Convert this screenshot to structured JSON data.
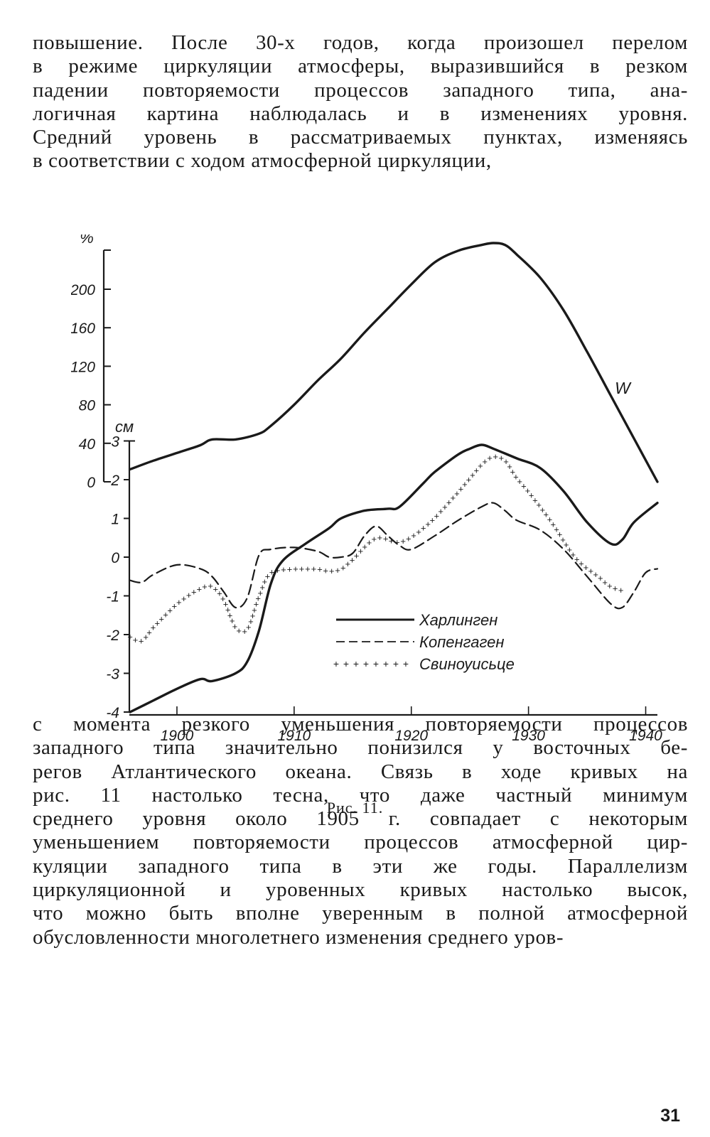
{
  "text_top": [
    "повышение. После 30-х годов, когда произошел перелом",
    "в режиме циркуляции атмосферы, выразившийся в резком",
    "падении повторяемости процессов западного типа, ана-",
    "логичная картина наблюдалась и в изменениях уровня.",
    "Средний уровень в рассматриваемых пунктах, изменяясь",
    "в соответствии с ходом атмосферной циркуляции,"
  ],
  "text_bottom": [
    "с момента резкого уменьшения повторяемости процессов",
    "западного типа значительно понизился у восточных бе-",
    "регов Атлантического океана. Связь в ходе кривых на",
    "рис. 11 настолько тесна, что даже частный минимум",
    "среднего уровня около 1905 г. совпадает с некоторым",
    "уменьшением повторяемости процессов атмосферной цир-",
    "куляции западного типа в эти же годы. Параллелизм",
    "циркуляционной и уровенных кривых настолько высок,",
    "что можно быть вполне уверенным в полной атмосферной",
    "обусловленности многолетнего изменения среднего уров-"
  ],
  "caption": "Рис. 11.",
  "page_number": "31",
  "chart_data": {
    "type": "line",
    "x_ticks": [
      "1900",
      "1910",
      "1920",
      "1930",
      "1940"
    ],
    "xlim": [
      1896,
      1941
    ],
    "y_left_unit": "%",
    "y_left_ticks": [
      "0",
      "40",
      "80",
      "120",
      "160",
      "200"
    ],
    "y_left_lim": [
      0,
      240
    ],
    "y_right_unit": "см",
    "y_right_ticks": [
      "-4",
      "-3",
      "-2",
      "-1",
      "0",
      "1",
      "2",
      "3"
    ],
    "y_right_lim": [
      -4,
      3
    ],
    "curve_label_W": "W",
    "series": [
      {
        "name": "W",
        "axis": "percent",
        "style": "solid-bold",
        "x": [
          1896,
          1898,
          1900,
          1902,
          1903,
          1905,
          1907,
          1908,
          1910,
          1912,
          1914,
          1916,
          1918,
          1920,
          1922,
          1924,
          1926,
          1927,
          1928,
          1929,
          1931,
          1933,
          1935,
          1937,
          1939,
          1941
        ],
        "y": [
          13,
          22,
          30,
          38,
          44,
          44,
          50,
          58,
          80,
          105,
          128,
          155,
          180,
          205,
          228,
          240,
          246,
          248,
          246,
          236,
          212,
          178,
          135,
          90,
          45,
          0
        ]
      },
      {
        "name": "Харлинген",
        "axis": "cm",
        "style": "solid",
        "x": [
          1896,
          1898,
          1900,
          1902,
          1903,
          1905,
          1906,
          1907,
          1908,
          1909,
          1911,
          1913,
          1914,
          1916,
          1918,
          1919,
          1921,
          1922,
          1924,
          1925,
          1926,
          1927,
          1929,
          1931,
          1933,
          1935,
          1937,
          1938,
          1939,
          1941
        ],
        "y": [
          -4,
          -3.7,
          -3.4,
          -3.15,
          -3.2,
          -3,
          -2.7,
          -1.9,
          -0.7,
          -0.1,
          0.35,
          0.75,
          1.0,
          1.2,
          1.25,
          1.3,
          1.9,
          2.2,
          2.65,
          2.8,
          2.9,
          2.8,
          2.55,
          2.3,
          1.7,
          0.9,
          0.35,
          0.45,
          0.9,
          1.4
        ]
      },
      {
        "name": "Копенгаген",
        "axis": "cm",
        "style": "dashed",
        "x": [
          1896,
          1897,
          1898,
          1900,
          1902,
          1903,
          1904,
          1905,
          1906,
          1907,
          1908,
          1910,
          1912,
          1913,
          1914,
          1915,
          1916,
          1917,
          1918,
          1919,
          1920,
          1922,
          1924,
          1926,
          1927,
          1928,
          1929,
          1931,
          1933,
          1935,
          1937,
          1938,
          1939,
          1940,
          1941
        ],
        "y": [
          -0.6,
          -0.65,
          -0.45,
          -0.2,
          -0.3,
          -0.5,
          -0.9,
          -1.3,
          -1.05,
          0.05,
          0.2,
          0.25,
          0.15,
          0.0,
          0.0,
          0.1,
          0.55,
          0.8,
          0.55,
          0.3,
          0.2,
          0.55,
          0.95,
          1.3,
          1.4,
          1.2,
          0.95,
          0.7,
          0.2,
          -0.5,
          -1.2,
          -1.3,
          -0.9,
          -0.4,
          -0.3
        ]
      },
      {
        "name": "Свиноуисьце",
        "axis": "cm",
        "style": "crosses",
        "x": [
          1896,
          1897,
          1898,
          1900,
          1902,
          1903,
          1904,
          1905,
          1906,
          1907,
          1908,
          1910,
          1912,
          1913,
          1914,
          1915,
          1917,
          1919,
          1921,
          1923,
          1925,
          1926,
          1927,
          1928,
          1929,
          1930,
          1932,
          1934,
          1936,
          1937,
          1938
        ],
        "y": [
          -2.05,
          -2.15,
          -1.8,
          -1.2,
          -0.8,
          -0.75,
          -1.1,
          -1.8,
          -1.85,
          -1.0,
          -0.4,
          -0.3,
          -0.3,
          -0.35,
          -0.3,
          -0.05,
          0.5,
          0.4,
          0.75,
          1.35,
          2.05,
          2.4,
          2.6,
          2.5,
          2.05,
          1.7,
          0.9,
          0.0,
          -0.5,
          -0.75,
          -0.85
        ]
      }
    ],
    "legend": [
      {
        "label": "Харлинген",
        "style": "solid"
      },
      {
        "label": "Копенгаген",
        "style": "dashed"
      },
      {
        "label": "Свиноуисьце",
        "style": "crosses"
      }
    ]
  }
}
